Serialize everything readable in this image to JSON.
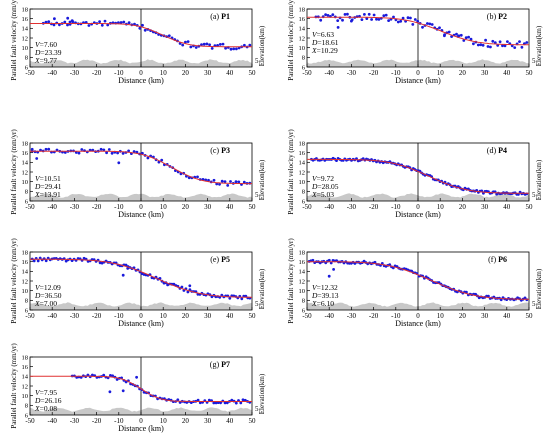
{
  "figure": {
    "ylabel": "Parallel fault velocity (mm/yr)",
    "xlabel": "Distance (km)",
    "elev_label": "Elevation(km)",
    "elev_tick": "5"
  },
  "colors": {
    "points": "#1a1adb",
    "fit": "#e03030",
    "terrain": "#c8c8c8"
  },
  "chart_data": [
    {
      "type": "scatter",
      "id": "P1",
      "panel_tag": "(a)",
      "profile": "P1",
      "xlabel": "Distance (km)",
      "ylabel": "Parallel fault velocity (mm/yr)",
      "elev_label": "Elevation(km)",
      "xlim": [
        -50,
        50
      ],
      "ylim": [
        6,
        18
      ],
      "xticks": [
        -50,
        -40,
        -30,
        -20,
        -10,
        0,
        10,
        20,
        30,
        40,
        50
      ],
      "yticks": [
        6,
        8,
        10,
        12,
        14,
        16,
        18
      ],
      "params": {
        "V": "7.60",
        "D": "23.39",
        "X": "9.77"
      },
      "params_pos": "bottom-left",
      "fit": {
        "V": 7.6,
        "D": 23.39,
        "X": 9.77,
        "c": 12.0
      },
      "obs": {
        "left": 15.0,
        "right": 10.2,
        "width": 13,
        "noise": 0.55,
        "xmin": -44,
        "xmax": 49,
        "n": 78
      },
      "points": [
        [
          -39,
          16.0
        ],
        [
          -33,
          16.1
        ],
        [
          -32,
          15.3
        ],
        [
          -31,
          15.6
        ]
      ]
    },
    {
      "type": "scatter",
      "id": "P2",
      "panel_tag": "(b)",
      "profile": "P2",
      "xlabel": "Distance (km)",
      "ylabel": "Parallel fault velocity (mm/yr)",
      "elev_label": "Elevation(km)",
      "xlim": [
        -50,
        50
      ],
      "ylim": [
        6,
        18
      ],
      "xticks": [
        -50,
        -40,
        -30,
        -20,
        -10,
        0,
        10,
        20,
        30,
        40,
        50
      ],
      "yticks": [
        6,
        8,
        10,
        12,
        14,
        16,
        18
      ],
      "params": {
        "V": "6.63",
        "D": "18.61",
        "X": "10.29"
      },
      "params_pos": "middle-left",
      "fit": {
        "V": 6.63,
        "D": 18.61,
        "X": 10.29,
        "c": 13.3
      },
      "obs": {
        "left": 16.3,
        "right": 10.6,
        "width": 18,
        "noise": 0.7,
        "xmin": -46,
        "xmax": 49,
        "n": 88
      },
      "points": [
        [
          -36,
          14.2
        ],
        [
          -30,
          15.5
        ],
        [
          12,
          12.7
        ],
        [
          18,
          12.3
        ]
      ]
    },
    {
      "type": "scatter",
      "id": "P3",
      "panel_tag": "(c)",
      "profile": "P3",
      "xlabel": "Distance (km)",
      "ylabel": "Parallel fault velocity (mm/yr)",
      "elev_label": "Elevation(km)",
      "xlim": [
        -50,
        50
      ],
      "ylim": [
        6,
        18
      ],
      "xticks": [
        -50,
        -40,
        -30,
        -20,
        -10,
        0,
        10,
        20,
        30,
        40,
        50
      ],
      "yticks": [
        6,
        8,
        10,
        12,
        14,
        16,
        18
      ],
      "params": {
        "V": "10.51",
        "D": "29.41",
        "X": "13.91"
      },
      "params_pos": "bottom-left",
      "fit": {
        "V": 10.51,
        "D": 29.41,
        "X": 13.91,
        "c": 12.4
      },
      "obs": {
        "left": 16.3,
        "right": 9.6,
        "width": 15,
        "noise": 0.45,
        "xmin": -49,
        "xmax": 49,
        "n": 80
      },
      "points": [
        [
          -49,
          16.7
        ],
        [
          -47,
          14.8
        ],
        [
          -10,
          13.9
        ]
      ]
    },
    {
      "type": "scatter",
      "id": "P4",
      "panel_tag": "(d)",
      "profile": "P4",
      "xlabel": "Distance (km)",
      "ylabel": "Parallel fault velocity (mm/yr)",
      "elev_label": "Elevation(km)",
      "xlim": [
        -50,
        50
      ],
      "ylim": [
        6,
        18
      ],
      "xticks": [
        -50,
        -40,
        -30,
        -20,
        -10,
        0,
        10,
        20,
        30,
        40,
        50
      ],
      "yticks": [
        6,
        8,
        10,
        12,
        14,
        16,
        18
      ],
      "params": {
        "V": "9.72",
        "D": "28.05",
        "X": "5.03"
      },
      "params_pos": "bottom-left",
      "fit": {
        "V": 9.72,
        "D": 28.05,
        "X": 5.03,
        "c": 11.0
      },
      "obs": {
        "left": 14.6,
        "right": 7.6,
        "width": 19,
        "noise": 0.25,
        "xmin": -48,
        "xmax": 49,
        "n": 130
      },
      "points": []
    },
    {
      "type": "scatter",
      "id": "P5",
      "panel_tag": "(e)",
      "profile": "P5",
      "xlabel": "Distance (km)",
      "ylabel": "Parallel fault velocity (mm/yr)",
      "elev_label": "Elevation(km)",
      "xlim": [
        -50,
        50
      ],
      "ylim": [
        6,
        18
      ],
      "xticks": [
        -50,
        -40,
        -30,
        -20,
        -10,
        0,
        10,
        20,
        30,
        40,
        50
      ],
      "yticks": [
        6,
        8,
        10,
        12,
        14,
        16,
        18
      ],
      "params": {
        "V": "12.09",
        "D": "36.50",
        "X": "7.00"
      },
      "params_pos": "bottom-left",
      "fit": {
        "V": 12.09,
        "D": 36.5,
        "X": 7.0,
        "c": 12.2
      },
      "obs": {
        "left": 16.5,
        "right": 8.6,
        "width": 22,
        "noise": 0.35,
        "xmin": -49,
        "xmax": 49,
        "n": 110
      },
      "points": [
        [
          -8,
          13.2
        ],
        [
          -6,
          14.6
        ],
        [
          12,
          11.2
        ],
        [
          22,
          11.0
        ]
      ]
    },
    {
      "type": "scatter",
      "id": "P6",
      "panel_tag": "(f)",
      "profile": "P6",
      "xlabel": "Distance (km)",
      "ylabel": "Parallel fault velocity (mm/yr)",
      "elev_label": "Elevation(km)",
      "xlim": [
        -50,
        50
      ],
      "ylim": [
        6,
        18
      ],
      "xticks": [
        -50,
        -40,
        -30,
        -20,
        -10,
        0,
        10,
        20,
        30,
        40,
        50
      ],
      "yticks": [
        6,
        8,
        10,
        12,
        14,
        16,
        18
      ],
      "params": {
        "V": "12.32",
        "D": "39.13",
        "X": "6.10"
      },
      "params_pos": "bottom-left",
      "fit": {
        "V": 12.32,
        "D": 39.13,
        "X": 6.1,
        "c": 11.9
      },
      "obs": {
        "left": 16.0,
        "right": 8.2,
        "width": 22,
        "noise": 0.3,
        "xmin": -49,
        "xmax": 49,
        "n": 120
      },
      "points": [
        [
          -40,
          13.0
        ],
        [
          -38,
          14.4
        ]
      ]
    },
    {
      "type": "scatter",
      "id": "P7",
      "panel_tag": "(g)",
      "profile": "P7",
      "xlabel": "Distance (km)",
      "ylabel": "Parallel fault velocity (mm/yr)",
      "elev_label": "Elevation(km)",
      "xlim": [
        -50,
        50
      ],
      "ylim": [
        6,
        18
      ],
      "xticks": [
        -50,
        -40,
        -30,
        -20,
        -10,
        0,
        10,
        20,
        30,
        40,
        50
      ],
      "yticks": [
        6,
        8,
        10,
        12,
        14,
        16,
        18
      ],
      "params": {
        "V": "7.95",
        "D": "26.16",
        "X": "0.08"
      },
      "params_pos": "bottom-left",
      "fit": {
        "V": 7.95,
        "D": 26.16,
        "X": 0.08,
        "c": 12.2
      },
      "obs": {
        "left": 14.0,
        "right": 8.8,
        "width": 10,
        "noise": 0.35,
        "xmin": -31,
        "xmax": 49,
        "n": 80
      },
      "points": [
        [
          -14,
          10.8
        ],
        [
          -8,
          11.0
        ],
        [
          -2,
          13.8
        ]
      ]
    }
  ]
}
